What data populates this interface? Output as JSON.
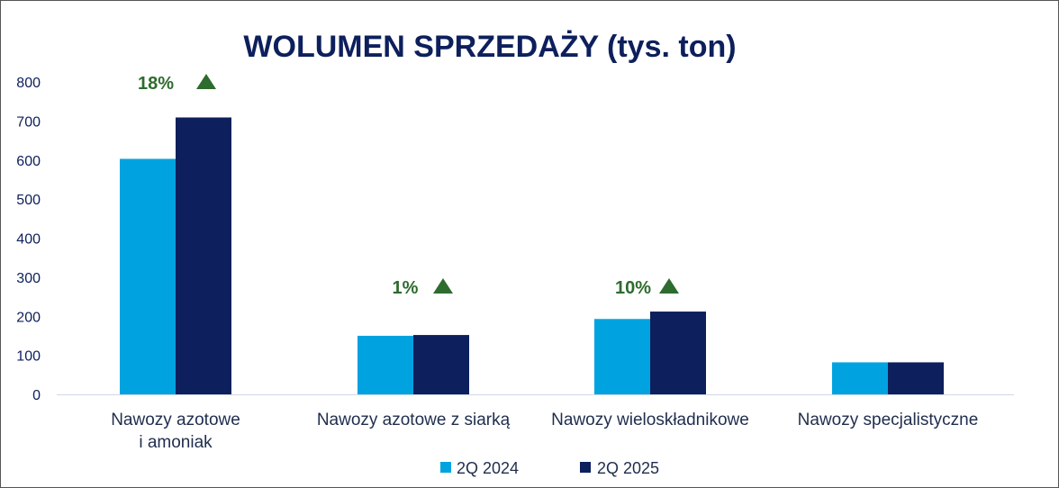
{
  "colors": {
    "series_2024": "#00a3e0",
    "series_2025": "#0d1f5c",
    "title": "#0d1f5c",
    "axis_text": "#0d1f5c",
    "category_text": "#1f2d4d",
    "growth": "#2e6b2e",
    "axis_line": "#d0d8e6"
  },
  "chart_data": {
    "type": "bar",
    "title": "WOLUMEN SPRZEDAŻY (tys. ton)",
    "categories": [
      [
        "Nawozy azotowe",
        "i amoniak"
      ],
      [
        "Nawozy azotowe z siarką"
      ],
      [
        "Nawozy wieloskładnikowe"
      ],
      [
        "Nawozy specjalistyczne"
      ]
    ],
    "series": [
      {
        "name": "2Q 2024",
        "values": [
          603,
          150,
          193,
          82
        ]
      },
      {
        "name": "2Q 2025",
        "values": [
          709,
          152,
          212,
          82
        ]
      }
    ],
    "growth_labels": [
      {
        "text": "18%",
        "icon": "up-triangle-icon"
      },
      {
        "text": "1%",
        "icon": "up-triangle-icon"
      },
      {
        "text": "10%",
        "icon": "up-triangle-icon"
      },
      null
    ],
    "ylim": [
      0,
      800
    ],
    "yticks": [
      0,
      100,
      200,
      300,
      400,
      500,
      600,
      700,
      800
    ],
    "grid": false,
    "legend_position": "bottom-center"
  }
}
